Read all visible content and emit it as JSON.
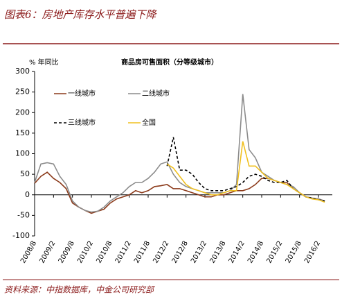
{
  "header": {
    "title": "图表6：房地产库存水平普遍下降"
  },
  "chart_data": {
    "type": "line",
    "title": "商品房可售面积（分等级城市）",
    "y_label": "% 年同比",
    "categories": [
      "2008/8",
      null,
      null,
      "2009/2",
      null,
      null,
      "2009/8",
      null,
      null,
      "2010/2",
      null,
      null,
      "2010/8",
      null,
      null,
      "2011/2",
      null,
      null,
      "2011/8",
      null,
      null,
      "2012/2",
      null,
      null,
      "2012/8",
      null,
      null,
      "2013/2",
      null,
      null,
      "2013/8",
      null,
      null,
      "2014/2",
      null,
      null,
      "2014/8",
      null,
      null,
      "2015/2",
      null,
      null,
      "2015/8",
      null,
      null,
      "2016/2",
      null
    ],
    "series": [
      {
        "name": "一线城市",
        "color": "#8b3a1a",
        "dashed": false,
        "values": [
          28,
          45,
          55,
          40,
          30,
          15,
          -20,
          -30,
          -38,
          -45,
          -40,
          -35,
          -20,
          -10,
          -5,
          0,
          10,
          5,
          10,
          20,
          22,
          25,
          15,
          15,
          10,
          5,
          0,
          -5,
          -5,
          0,
          0,
          5,
          10,
          10,
          15,
          25,
          40,
          40,
          35,
          30,
          30,
          15,
          5,
          -5,
          -8,
          -10,
          -15
        ]
      },
      {
        "name": "二线城市",
        "color": "#8c8c8c",
        "dashed": false,
        "values": [
          30,
          75,
          78,
          75,
          45,
          25,
          -15,
          -30,
          -38,
          -42,
          -40,
          -30,
          -15,
          -5,
          5,
          20,
          30,
          30,
          40,
          55,
          75,
          80,
          50,
          30,
          20,
          15,
          10,
          5,
          5,
          5,
          5,
          10,
          25,
          245,
          110,
          90,
          55,
          45,
          35,
          30,
          25,
          20,
          5,
          -5,
          -8,
          -10,
          -15
        ]
      },
      {
        "name": "三线城市",
        "color": "#000000",
        "dashed": true,
        "values": [
          null,
          null,
          null,
          null,
          null,
          null,
          null,
          null,
          null,
          null,
          null,
          null,
          null,
          null,
          null,
          null,
          null,
          null,
          null,
          null,
          null,
          70,
          140,
          60,
          60,
          50,
          30,
          15,
          10,
          10,
          10,
          15,
          20,
          30,
          45,
          50,
          45,
          35,
          30,
          30,
          35,
          15,
          5,
          -5,
          -8,
          -12,
          -15
        ]
      },
      {
        "name": "全国",
        "color": "#f0c020",
        "dashed": false,
        "values": [
          null,
          null,
          null,
          null,
          null,
          null,
          null,
          null,
          null,
          null,
          null,
          null,
          null,
          null,
          null,
          null,
          null,
          null,
          null,
          null,
          null,
          75,
          65,
          45,
          25,
          15,
          10,
          5,
          0,
          0,
          5,
          10,
          10,
          130,
          70,
          70,
          55,
          40,
          35,
          30,
          25,
          15,
          5,
          -5,
          -10,
          -12,
          -18
        ]
      }
    ],
    "ylim": [
      -100,
      300
    ],
    "yticks": [
      -100,
      -50,
      0,
      50,
      100,
      150,
      200,
      250,
      300
    ],
    "grid": false
  },
  "footer": {
    "source": "资料来源：中指数据库，中金公司研究部"
  }
}
